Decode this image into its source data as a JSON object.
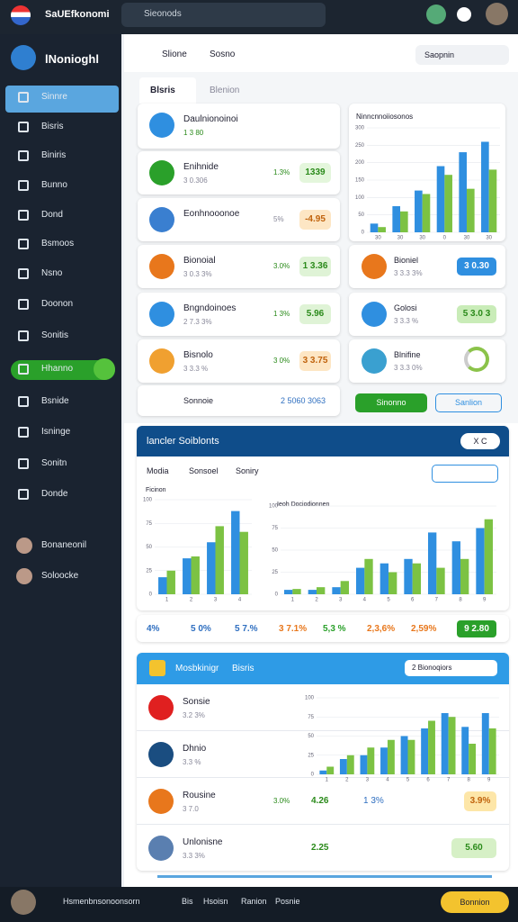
{
  "topbar": {
    "brand": "SaUEfkonomi",
    "search": "Sieonods"
  },
  "sidebar": {
    "logo": "lNonioghl",
    "items": [
      "Sinnre",
      "Bisris",
      "Biniris",
      "Bunno",
      "Dond",
      "Bsmoos",
      "Nsno",
      "Doonon",
      "Sonitis",
      "Hhanno",
      "Bsnide",
      "Isninge",
      "Sonitn",
      "Donde"
    ],
    "users": [
      "Bonaneonil",
      "Soloocke"
    ]
  },
  "header": {
    "crumbs": [
      "Slione",
      "Sosno"
    ],
    "search": "Saopnin"
  },
  "tabs": [
    "Blsris",
    "Blenion"
  ],
  "cards_left": [
    {
      "title": "Daulnionoinoi",
      "sub": "1 3 80"
    },
    {
      "title": "Enihnide",
      "sub": "3 0.306",
      "stat": "1.3%",
      "badge": "1339"
    },
    {
      "title": "Eonhnooonoe",
      "stat": "5%",
      "badge": "-4.95"
    },
    {
      "title": "Bionoial",
      "sub": "3 0.3 3%",
      "stat": "3.0%",
      "badge": "1 3.36"
    },
    {
      "title": "Bngndoinoes",
      "sub": "2 7.3 3%",
      "stat": "1 3%",
      "badge": "5.96"
    },
    {
      "title": "Bisnolo",
      "sub": "3 3.3 %",
      "stat": "3 0%",
      "badge": "3 3.75"
    }
  ],
  "cards_footer": {
    "title": "Sonnoie",
    "value": "2 5060 3063"
  },
  "cards_right": [
    {
      "title": "Bioniel",
      "sub": "3 3.3 3%",
      "badge": "3 0.30"
    },
    {
      "title": "Golosi",
      "sub": "3 3.3 %",
      "badge": "5 3.0 3"
    },
    {
      "title": "Blnifine",
      "sub": "3 3.3 0%"
    }
  ],
  "buttons": [
    "Sinonno",
    "Sanlion"
  ],
  "section2": {
    "title": "lancler Soiblonts",
    "toggle": "X C",
    "tabs": [
      "Modia",
      "Sonsoel",
      "Soniry"
    ],
    "stats": [
      "4%",
      "5 0%",
      "5 7.%",
      "3 7.1%",
      "5,3 %",
      "2,3,6%",
      "2,59%",
      "9 2.80"
    ]
  },
  "section3": {
    "title": "Mosbkinigr",
    "subtitle": "Bisris",
    "dropdown": "2 Bionoqiors",
    "rows": [
      {
        "title": "Sonsie",
        "sub": "3.2 3%"
      },
      {
        "title": "Dhnio",
        "sub": "3.3 %"
      },
      {
        "title": "Rousine",
        "sub": "3 7.0",
        "stat": "3.0%",
        "value": "4.26",
        "value2": "1 3%",
        "badge": "3.9%"
      },
      {
        "title": "Unlonisne",
        "sub": "3.3 3%",
        "value": "2.25",
        "badge": "5.60"
      }
    ]
  },
  "bottombar": {
    "links": [
      "Hsmenbnsonoonsorn",
      "Bis",
      "Hsoisn",
      "Ranion",
      "Posnie"
    ],
    "button": "Bonnion"
  },
  "chart_data": [
    {
      "type": "bar",
      "title": "Ninncnnoiiosonos",
      "categories": [
        "30",
        "30",
        "30",
        "0",
        "30",
        "30"
      ],
      "ylim": [
        0,
        300
      ],
      "yticks": [
        0,
        50,
        100,
        150,
        200,
        250,
        300
      ],
      "grid": true,
      "series": [
        {
          "name": "A",
          "color": "#2f8fe0",
          "values": [
            25,
            75,
            120,
            190,
            230,
            260
          ]
        },
        {
          "name": "B",
          "color": "#7cc243",
          "values": [
            15,
            60,
            110,
            165,
            125,
            180
          ]
        }
      ]
    },
    {
      "type": "bar",
      "title": "Ficinon",
      "categories": [
        "1",
        "2",
        "3",
        "4"
      ],
      "ylim": [
        0,
        100
      ],
      "yticks": [
        0,
        25,
        50,
        75,
        100
      ],
      "grid": true,
      "series": [
        {
          "name": "A",
          "color": "#2f8fe0",
          "values": [
            18,
            38,
            55,
            88
          ]
        },
        {
          "name": "B",
          "color": "#7cc243",
          "values": [
            25,
            40,
            72,
            66
          ]
        }
      ]
    },
    {
      "type": "bar",
      "title": "Ieoh Dociodionnen",
      "categories": [
        "1",
        "2",
        "3",
        "4",
        "5",
        "6",
        "7",
        "8",
        "9"
      ],
      "ylim": [
        0,
        100
      ],
      "yticks": [
        0,
        25,
        50,
        75,
        100
      ],
      "grid": true,
      "series": [
        {
          "name": "A",
          "color": "#2f8fe0",
          "values": [
            5,
            5,
            8,
            30,
            35,
            40,
            70,
            60,
            75
          ]
        },
        {
          "name": "B",
          "color": "#7cc243",
          "values": [
            6,
            8,
            15,
            40,
            25,
            35,
            30,
            40,
            85
          ]
        }
      ]
    },
    {
      "type": "bar",
      "categories": [
        "1",
        "2",
        "3",
        "4",
        "5",
        "6",
        "7",
        "8",
        "9"
      ],
      "ylim": [
        0,
        100
      ],
      "yticks": [
        0,
        25,
        50,
        75,
        100
      ],
      "grid": true,
      "series": [
        {
          "name": "A",
          "color": "#2f8fe0",
          "values": [
            5,
            20,
            25,
            35,
            50,
            60,
            80,
            62,
            80
          ]
        },
        {
          "name": "B",
          "color": "#7cc243",
          "values": [
            10,
            25,
            35,
            45,
            45,
            70,
            75,
            40,
            60
          ]
        }
      ]
    }
  ]
}
